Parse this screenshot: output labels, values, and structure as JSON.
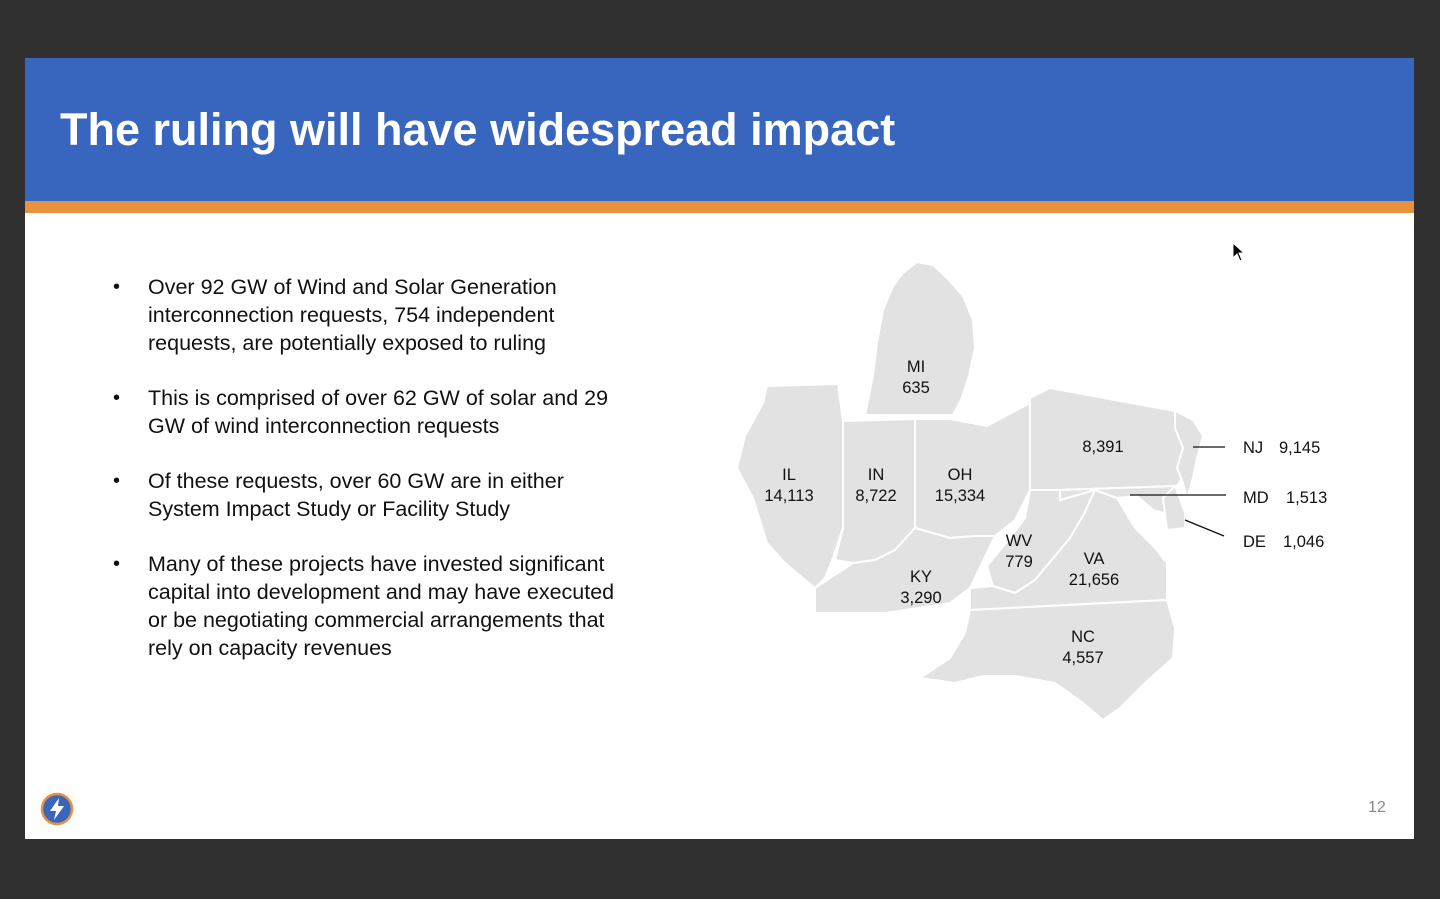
{
  "slide": {
    "title": "The ruling will have widespread impact",
    "page_number": "12",
    "bullets": [
      "Over 92 GW of Wind and Solar Generation interconnection requests, 754 independent requests, are potentially exposed to ruling",
      "This is comprised of over 62 GW of solar and 29 GW  of wind interconnection requests",
      "Of these requests, over 60 GW are in either System Impact Study or Facility Study",
      "Many of these projects have invested significant capital into development and may have executed or be negotiating commercial arrangements that rely on capacity revenues"
    ],
    "bullet_marker": "•"
  },
  "map": {
    "states": [
      {
        "abbr": "MI",
        "value": "635"
      },
      {
        "abbr": "IL",
        "value": "14,113"
      },
      {
        "abbr": "IN",
        "value": "8,722"
      },
      {
        "abbr": "OH",
        "value": "15,334"
      },
      {
        "abbr": "",
        "value": "8,391"
      },
      {
        "abbr": "WV",
        "value": "779"
      },
      {
        "abbr": "VA",
        "value": "21,656"
      },
      {
        "abbr": "KY",
        "value": "3,290"
      },
      {
        "abbr": "NC",
        "value": "4,557"
      }
    ],
    "callouts": [
      {
        "abbr": "NJ",
        "value": "9,145"
      },
      {
        "abbr": "MD",
        "value": "1,513"
      },
      {
        "abbr": "DE",
        "value": "1,046"
      }
    ]
  },
  "colors": {
    "header": "#3866be",
    "accent": "#e8913f",
    "map_fill": "#e2e2e2",
    "background": "#303030"
  },
  "icons": {
    "logo": "lightning-bolt-icon",
    "cursor": "mouse-pointer-icon"
  }
}
